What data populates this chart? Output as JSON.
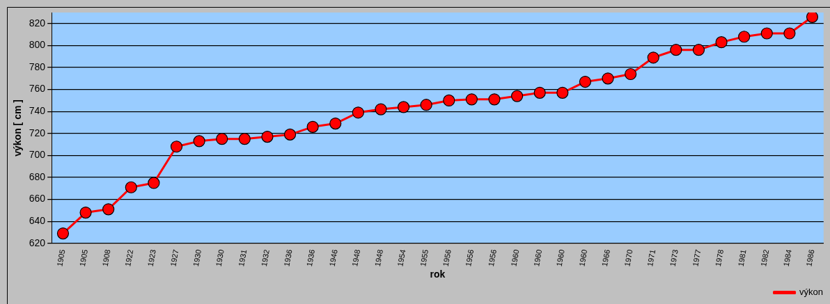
{
  "chart_data": {
    "type": "line",
    "xlabel": "rok",
    "ylabel": "výkon [ cm ]",
    "categories": [
      "1905",
      "1905",
      "1908",
      "1922",
      "1923",
      "1927",
      "1930",
      "1930",
      "1931",
      "1932",
      "1936",
      "1936",
      "1946",
      "1948",
      "1948",
      "1954",
      "1955",
      "1956",
      "1956",
      "1956",
      "1960",
      "1960",
      "1960",
      "1960",
      "1966",
      "1970",
      "1971",
      "1973",
      "1977",
      "1978",
      "1981",
      "1982",
      "1984",
      "1986"
    ],
    "series": [
      {
        "name": "výkon",
        "color": "#ff0000",
        "values": [
          629,
          648,
          651,
          671,
          675,
          708,
          713,
          715,
          715,
          717,
          719,
          726,
          729,
          739,
          742,
          744,
          746,
          750,
          751,
          751,
          754,
          757,
          757,
          767,
          770,
          774,
          789,
          796,
          796,
          803,
          808,
          811,
          811,
          826
        ]
      }
    ],
    "ylim": [
      620,
      830
    ],
    "yticks": [
      620,
      640,
      660,
      680,
      700,
      720,
      740,
      760,
      780,
      800,
      820
    ],
    "grid": "y",
    "legend": "bottom right",
    "marker": "circle",
    "line_style": "solid"
  }
}
